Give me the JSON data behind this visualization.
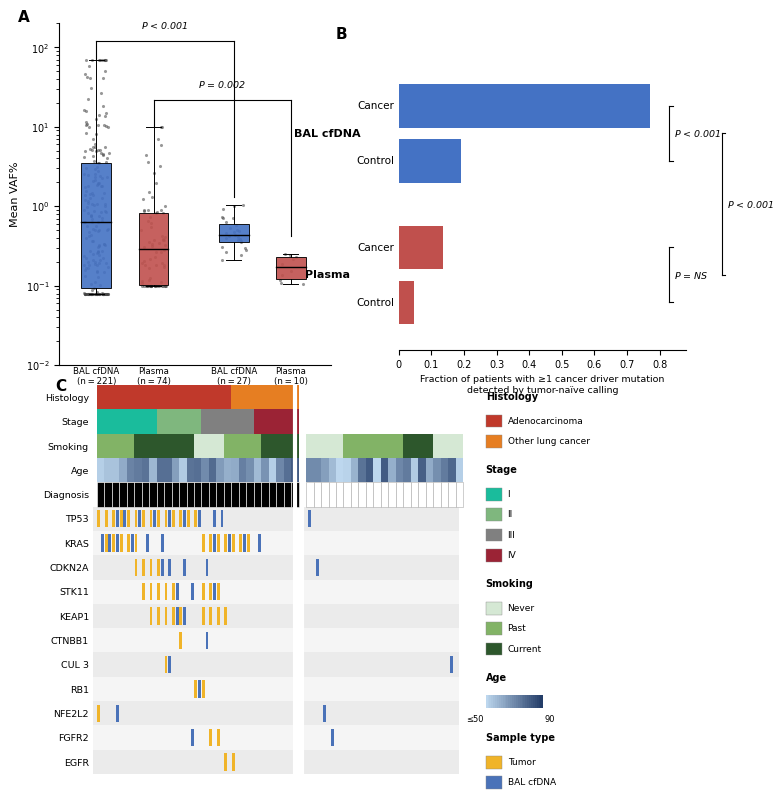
{
  "panel_A": {
    "colors": [
      "#4472C4",
      "#C0504D",
      "#4472C4",
      "#C0504D"
    ],
    "medians": [
      0.45,
      0.35,
      0.48,
      0.185
    ],
    "q1": [
      0.18,
      0.18,
      0.38,
      0.155
    ],
    "q3": [
      5.5,
      1.5,
      0.65,
      0.27
    ],
    "whisker_low": [
      0.08,
      0.1,
      0.14,
      0.105
    ],
    "whisker_high": [
      65,
      10,
      1.2,
      0.42
    ],
    "n_samples": [
      221,
      74,
      27,
      10
    ],
    "group_names": [
      "BAL cfDNA",
      "Plasma",
      "BAL cfDNA",
      "Plasma"
    ],
    "ylabel": "Mean VAF%",
    "ylim": [
      0.01,
      200
    ],
    "cancer_label": "Cancer",
    "control_label": "Control",
    "pval1": "$P$ < 0.001",
    "pval2": "$P$ = 0.002"
  },
  "panel_B": {
    "values": [
      0.77,
      0.19,
      0.135,
      0.045
    ],
    "colors": [
      "#4472C4",
      "#4472C4",
      "#C0504D",
      "#C0504D"
    ],
    "bar_labels": [
      "Cancer",
      "Control",
      "Cancer",
      "Control"
    ],
    "group1_label": "BAL cfDNA",
    "group2_label": "Plasma",
    "xlabel": "Fraction of patients with ≥1 cancer driver mutation\ndetected by tumor-naïve calling",
    "xlim": [
      0,
      0.85
    ],
    "xticks": [
      0,
      0.1,
      0.2,
      0.3,
      0.4,
      0.5,
      0.6,
      0.7,
      0.8
    ],
    "pval_BAL": "$P$ < 0.001",
    "pval_cross": "$P$ < 0.001",
    "pval_plasma": "$P$ = NS"
  },
  "panel_C": {
    "n_cancer": 27,
    "n_control": 21,
    "genes": [
      "TP53",
      "KRAS",
      "CDKN2A",
      "STK11",
      "KEAP1",
      "CTNBB1",
      "CUL 3",
      "RB1",
      "NFE2L2",
      "FGFR2",
      "EGFR"
    ],
    "clinical_rows": [
      "Histology",
      "Stage",
      "Smoking",
      "Age"
    ],
    "tumor_color": "#F0B429",
    "bal_color": "#4A72B8",
    "hist_adeno_color": "#C0392B",
    "hist_other_color": "#E67E22",
    "stage_colors": {
      "I": "#1ABC9C",
      "II": "#7FB77E",
      "III": "#808080",
      "IV": "#9B2335"
    },
    "smoking_colors": {
      "Never": "#D5E8D4",
      "Past": "#82B366",
      "Current": "#2D572C"
    },
    "age_young": "#BDD7EE",
    "age_old": "#1F3864",
    "bg_even": "#EBEBEB",
    "bg_odd": "#F5F5F5"
  },
  "legend": {
    "histology_header": "Histology",
    "histology_items": [
      [
        "Adenocarcinoma",
        "#C0392B"
      ],
      [
        "Other lung cancer",
        "#E67E22"
      ]
    ],
    "stage_header": "Stage",
    "stage_items": [
      [
        "I",
        "#1ABC9C"
      ],
      [
        "II",
        "#7FB77E"
      ],
      [
        "III",
        "#808080"
      ],
      [
        "IV",
        "#9B2335"
      ]
    ],
    "smoking_header": "Smoking",
    "smoking_items": [
      [
        "Never",
        "#D5E8D4"
      ],
      [
        "Past",
        "#82B366"
      ],
      [
        "Current",
        "#2D572C"
      ]
    ],
    "age_header": "Age",
    "age_young": "#BDD7EE",
    "age_old": "#1F3864",
    "age_label_low": "≤50",
    "age_label_high": "90",
    "sample_header": "Sample type",
    "sample_items": [
      [
        "Tumor",
        "#F0B429"
      ],
      [
        "BAL cfDNA",
        "#4A72B8"
      ]
    ]
  }
}
